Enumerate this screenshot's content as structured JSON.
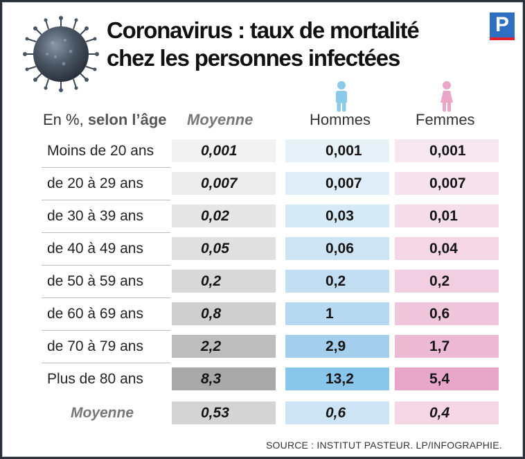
{
  "title_line1": "Coronavirus : taux de mortalité",
  "title_line2": "chez les personnes infectées",
  "logo_letter": "P",
  "headers": {
    "age_prefix": "En %, ",
    "age_bold": "selon l’âge",
    "average": "Moyenne",
    "men": "Hommes",
    "women": "Femmes"
  },
  "icons": {
    "virus": "coronavirus-icon",
    "men": "male-person-icon",
    "women": "female-person-icon"
  },
  "colors": {
    "avg_scale": [
      "#f2f2f2",
      "#ececec",
      "#e6e6e6",
      "#e0e0e0",
      "#d8d8d8",
      "#cfcfcf",
      "#bdbdbd",
      "#a9a9a9"
    ],
    "men_scale": [
      "#e6f1f8",
      "#deedf7",
      "#d6e9f6",
      "#cde4f4",
      "#c2def2",
      "#b6d8f0",
      "#a3cfed",
      "#8ac6ea"
    ],
    "women_scale": [
      "#f7e7ef",
      "#f6e2ec",
      "#f5dde9",
      "#f4d6e5",
      "#f2cfe0",
      "#efc6da",
      "#ecb9d2",
      "#e8a7c8"
    ],
    "total_avg": "#d4d4d4",
    "total_men": "#cce4f4",
    "total_women": "#f4d6e5"
  },
  "chart_data": {
    "type": "table",
    "columns": [
      "Moyenne",
      "Hommes",
      "Femmes"
    ],
    "rows": [
      {
        "label": "Moins de 20 ans",
        "avg": "0,001",
        "men": "0,001",
        "women": "0,001"
      },
      {
        "label": "de 20 à 29 ans",
        "avg": "0,007",
        "men": "0,007",
        "women": "0,007"
      },
      {
        "label": "de 30 à 39 ans",
        "avg": "0,02",
        "men": "0,03",
        "women": "0,01"
      },
      {
        "label": "de 40 à 49 ans",
        "avg": "0,05",
        "men": "0,06",
        "women": "0,04"
      },
      {
        "label": "de 50 à 59 ans",
        "avg": "0,2",
        "men": "0,2",
        "women": "0,2"
      },
      {
        "label": "de 60 à 69 ans",
        "avg": "0,8",
        "men": "1",
        "women": "0,6"
      },
      {
        "label": "de 70 à 79 ans",
        "avg": "2,2",
        "men": "2,9",
        "women": "1,7"
      },
      {
        "label": "Plus de 80 ans",
        "avg": "8,3",
        "men": "13,2",
        "women": "5,4"
      }
    ],
    "total": {
      "label": "Moyenne",
      "avg": "0,53",
      "men": "0,6",
      "women": "0,4"
    }
  },
  "source": "SOURCE : INSTITUT PASTEUR.  LP/INFOGRAPHIE."
}
